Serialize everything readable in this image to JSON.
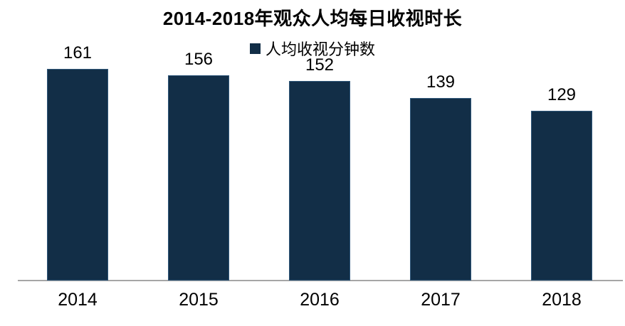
{
  "chart_data": {
    "type": "bar",
    "title": "2014-2018年观众人均每日收视时长",
    "categories": [
      "2014",
      "2015",
      "2016",
      "2017",
      "2018"
    ],
    "series": [
      {
        "name": "人均收视分钟数",
        "values": [
          161,
          156,
          152,
          139,
          129
        ]
      }
    ],
    "xlabel": "",
    "ylabel": "",
    "ylim": [
      0,
      215
    ],
    "grid": false,
    "legend_position": "top-center",
    "data_labels": true,
    "colors": {
      "bar_fill": "#122e47",
      "bar_edge": "#30587b",
      "axis_line": "#a6a6a6",
      "text": "#000000",
      "background": "#ffffff"
    }
  }
}
